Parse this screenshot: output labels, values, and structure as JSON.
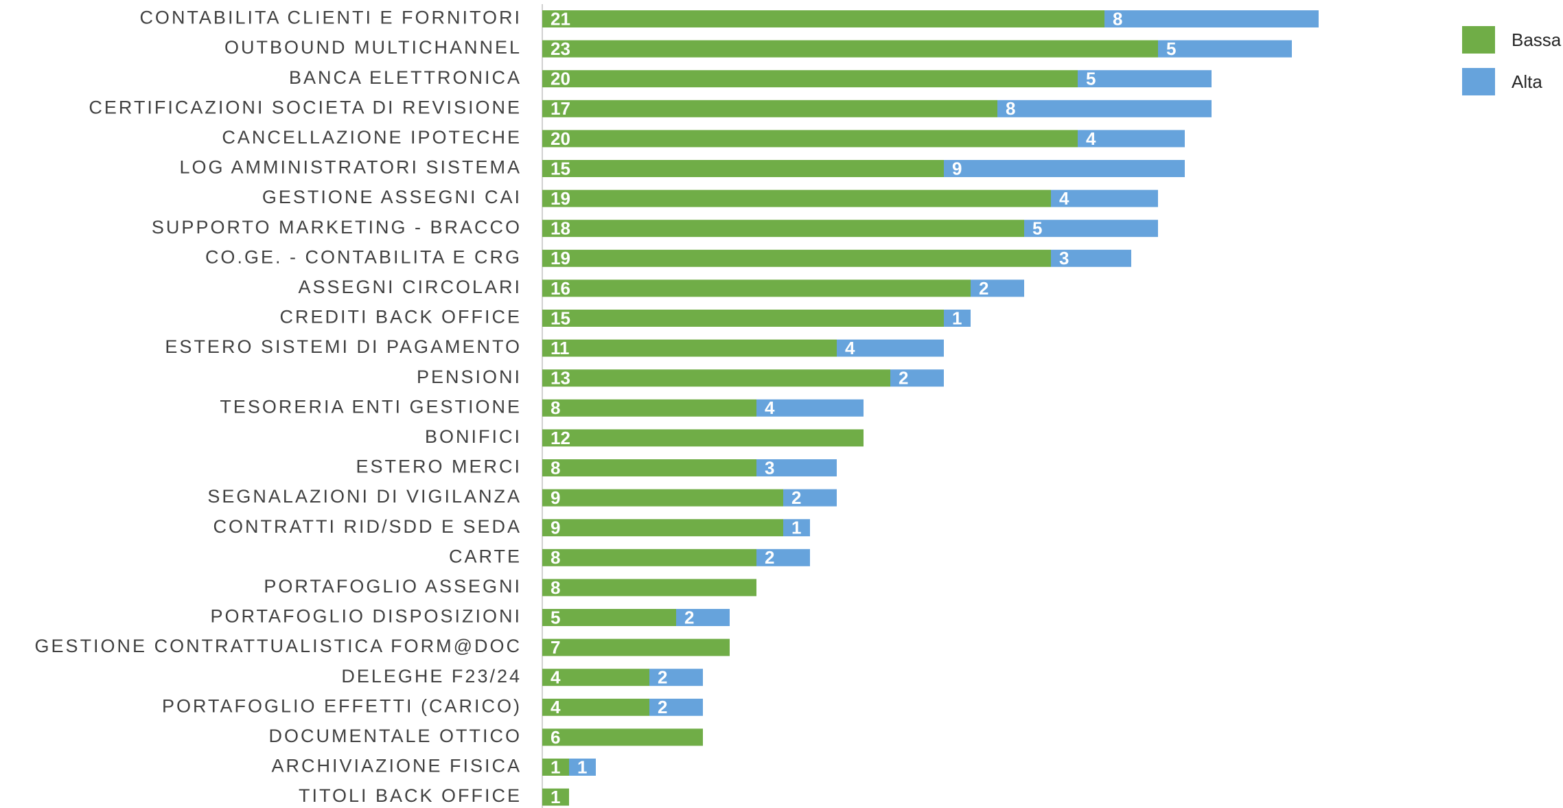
{
  "chart_data": {
    "type": "stacked-bar-horizontal",
    "categories": [
      "CONTABILITA CLIENTI E FORNITORI",
      "OUTBOUND MULTICHANNEL",
      "BANCA ELETTRONICA",
      "CERTIFICAZIONI SOCIETA DI REVISIONE",
      "CANCELLAZIONE IPOTECHE",
      "LOG AMMINISTRATORI SISTEMA",
      "GESTIONE ASSEGNI CAI",
      "SUPPORTO MARKETING - BRACCO",
      "CO.GE. - CONTABILITA E CRG",
      "ASSEGNI CIRCOLARI",
      "CREDITI BACK OFFICE",
      "ESTERO SISTEMI DI PAGAMENTO",
      "PENSIONI",
      "TESORERIA ENTI GESTIONE",
      "BONIFICI",
      "ESTERO MERCI",
      "SEGNALAZIONI DI VIGILANZA",
      "CONTRATTI RID/SDD E SEDA",
      "CARTE",
      "PORTAFOGLIO ASSEGNI",
      "PORTAFOGLIO DISPOSIZIONI",
      "GESTIONE CONTRATTUALISTICA FORM@DOC",
      "DELEGHE F23/24",
      "PORTAFOGLIO EFFETTI (CARICO)",
      "DOCUMENTALE OTTICO",
      "ARCHIVIAZIONE FISICA",
      "TITOLI BACK OFFICE"
    ],
    "series": [
      {
        "name": "Bassa",
        "color": "#70ad47",
        "values": [
          21,
          23,
          20,
          17,
          20,
          15,
          19,
          18,
          19,
          16,
          15,
          11,
          13,
          8,
          12,
          8,
          9,
          9,
          8,
          8,
          5,
          7,
          4,
          4,
          6,
          1,
          1
        ]
      },
      {
        "name": "Alta",
        "color": "#66a3dc",
        "values": [
          8,
          5,
          5,
          8,
          4,
          9,
          4,
          5,
          3,
          2,
          1,
          4,
          2,
          4,
          null,
          3,
          2,
          1,
          2,
          null,
          2,
          null,
          2,
          2,
          null,
          1,
          null
        ]
      }
    ],
    "xlim": [
      0,
      35
    ],
    "legend": "top-right"
  }
}
